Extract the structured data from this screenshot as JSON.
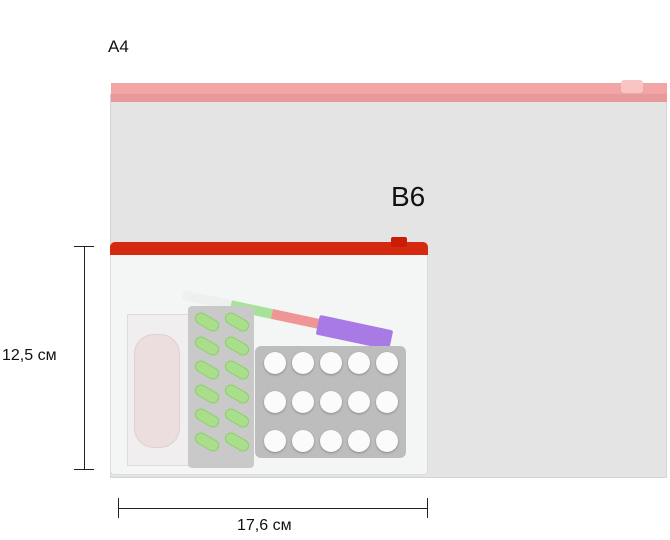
{
  "labels": {
    "a4": "A4",
    "b6": "B6"
  },
  "dimensions": {
    "height": "12,5 см",
    "width": "17,6 см"
  },
  "colors": {
    "a4_zipper": "#f3a4a4",
    "b6_zipper": "#d62a10",
    "bag": "#e4e4e4"
  }
}
